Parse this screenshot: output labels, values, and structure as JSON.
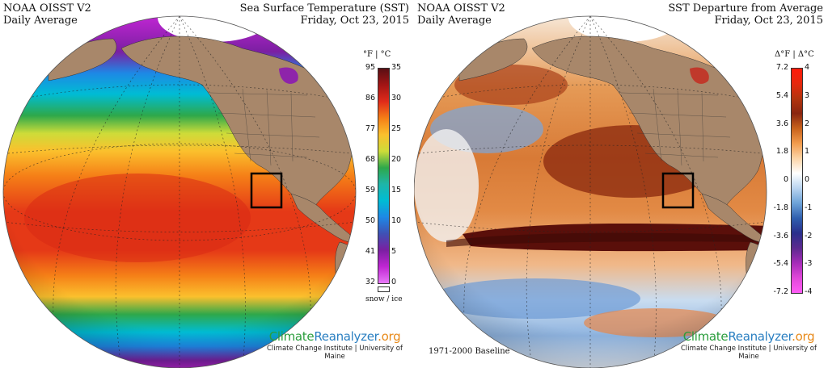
{
  "sst_panel": {
    "title_left": [
      "NOAA OISST V2",
      "Daily Average"
    ],
    "title_right": [
      "Sea Surface Temperature (SST)",
      "Friday, Oct 23, 2015"
    ],
    "colorbar": {
      "units": "°F  |  °C",
      "f_ticks": [
        "95",
        "86",
        "77",
        "68",
        "59",
        "50",
        "41",
        "32"
      ],
      "c_ticks": [
        "35",
        "30",
        "25",
        "20",
        "15",
        "10",
        "5",
        "0"
      ],
      "below_label": "snow / ice",
      "colors": [
        "#5a0f14",
        "#a31515",
        "#e02b1a",
        "#f57f17",
        "#fbc02d",
        "#cddc39",
        "#2ea84a",
        "#1fb5a8",
        "#00bcd4",
        "#1e88e5",
        "#3f51b5",
        "#7b1fa2",
        "#c026d3",
        "#e879f9"
      ]
    }
  },
  "anom_panel": {
    "title_left": [
      "NOAA OISST V2",
      "Daily Average"
    ],
    "title_right": [
      "SST Departure from Average",
      "Friday, Oct 23, 2015"
    ],
    "colorbar": {
      "units": "Δ°F  |  Δ°C",
      "f_ticks": [
        "7.2",
        "5.4",
        "3.6",
        "1.8",
        "0",
        "-1.8",
        "-3.6",
        "-5.4",
        "-7.2"
      ],
      "c_ticks": [
        "4",
        "3",
        "2",
        "1",
        "0",
        "-1",
        "-2",
        "-3",
        "-4"
      ],
      "colors": [
        "#ff1a0a",
        "#e6280d",
        "#b3340d",
        "#8a2610",
        "#c8621c",
        "#f29b4c",
        "#fcd4a6",
        "#ffffff",
        "#b9d4f0",
        "#6da2d8",
        "#2f5fae",
        "#2a2f8c",
        "#5c2a8f",
        "#a62bb8",
        "#e047d9",
        "#ff5cf5"
      ]
    },
    "baseline": "1971-2000 Baseline"
  },
  "credit": {
    "brand_parts": [
      "Climate",
      "Reanalyzer",
      ".org"
    ],
    "institution": "Climate Change Institute | University of Maine"
  }
}
